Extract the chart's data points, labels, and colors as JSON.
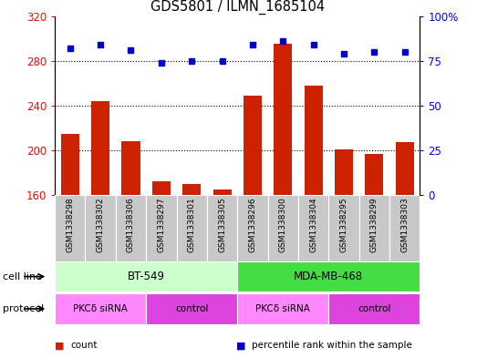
{
  "title": "GDS5801 / ILMN_1685104",
  "samples": [
    "GSM1338298",
    "GSM1338302",
    "GSM1338306",
    "GSM1338297",
    "GSM1338301",
    "GSM1338305",
    "GSM1338296",
    "GSM1338300",
    "GSM1338304",
    "GSM1338295",
    "GSM1338299",
    "GSM1338303"
  ],
  "counts": [
    215,
    244,
    208,
    172,
    170,
    165,
    249,
    295,
    258,
    201,
    197,
    207
  ],
  "percentiles": [
    82,
    84,
    81,
    74,
    75,
    75,
    84,
    86,
    84,
    79,
    80,
    80
  ],
  "ylim_left": [
    160,
    320
  ],
  "ylim_right": [
    0,
    100
  ],
  "yticks_left": [
    160,
    200,
    240,
    280,
    320
  ],
  "yticks_right": [
    0,
    25,
    50,
    75,
    100
  ],
  "cell_line_groups": [
    {
      "label": "BT-549",
      "start": 0,
      "end": 6,
      "color": "#ccffcc"
    },
    {
      "label": "MDA-MB-468",
      "start": 6,
      "end": 12,
      "color": "#44dd44"
    }
  ],
  "protocol_groups": [
    {
      "label": "PKCδ siRNA",
      "start": 0,
      "end": 3,
      "color": "#ff88ff"
    },
    {
      "label": "control",
      "start": 3,
      "end": 6,
      "color": "#dd44dd"
    },
    {
      "label": "PKCδ siRNA",
      "start": 6,
      "end": 9,
      "color": "#ff88ff"
    },
    {
      "label": "control",
      "start": 9,
      "end": 12,
      "color": "#dd44dd"
    }
  ],
  "bar_color": "#cc2200",
  "dot_color": "#0000cc",
  "sample_bg": "#c8c8c8",
  "plot_bg": "#ffffff",
  "grid_vals": [
    200,
    240,
    280
  ],
  "legend_items": [
    {
      "label": "count",
      "color": "#cc2200"
    },
    {
      "label": "percentile rank within the sample",
      "color": "#0000cc"
    }
  ],
  "cell_line_label": "cell line",
  "protocol_label": "protocol"
}
